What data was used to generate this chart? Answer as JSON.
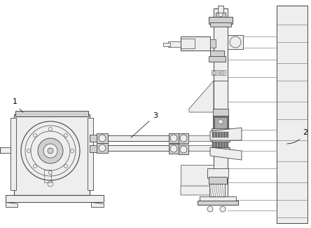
{
  "bg_color": "#ffffff",
  "line_color": "#aaaaaa",
  "dark_line": "#666666",
  "darker_line": "#444444",
  "fill_light": "#eeeeee",
  "fill_medium": "#d0d0d0",
  "fill_dark": "#aaaaaa",
  "fill_very_dark": "#777777",
  "fill_black": "#555555",
  "label_1": "1",
  "label_2": "2",
  "label_3": "3",
  "fig_width": 4.44,
  "fig_height": 3.25,
  "dpi": 100
}
